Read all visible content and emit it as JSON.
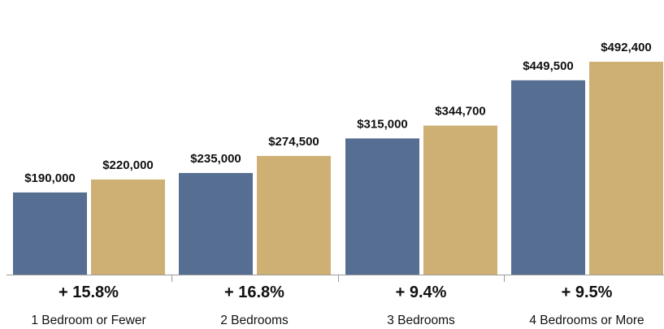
{
  "chart_data": {
    "type": "bar",
    "title": "",
    "xlabel": "",
    "ylabel": "",
    "ylim": [
      0,
      520000
    ],
    "grid": false,
    "legend": "none",
    "categories": [
      "1 Bedroom or Fewer",
      "2 Bedrooms",
      "3 Bedrooms",
      "4 Bedrooms or More"
    ],
    "series": [
      {
        "values": [
          190000,
          235000,
          315000,
          449500
        ],
        "color": "#556e91"
      },
      {
        "values": [
          220000,
          274500,
          344700,
          492400
        ],
        "color": "#cfb074"
      }
    ],
    "value_labels": [
      [
        "$190,000",
        "$235,000",
        "$315,000",
        "$449,500"
      ],
      [
        "$220,000",
        "$274,500",
        "$344,700",
        "$492,400"
      ]
    ],
    "change_labels": [
      "+ 15.8%",
      "+ 16.8%",
      "+ 9.4%",
      "+ 9.5%"
    ]
  }
}
